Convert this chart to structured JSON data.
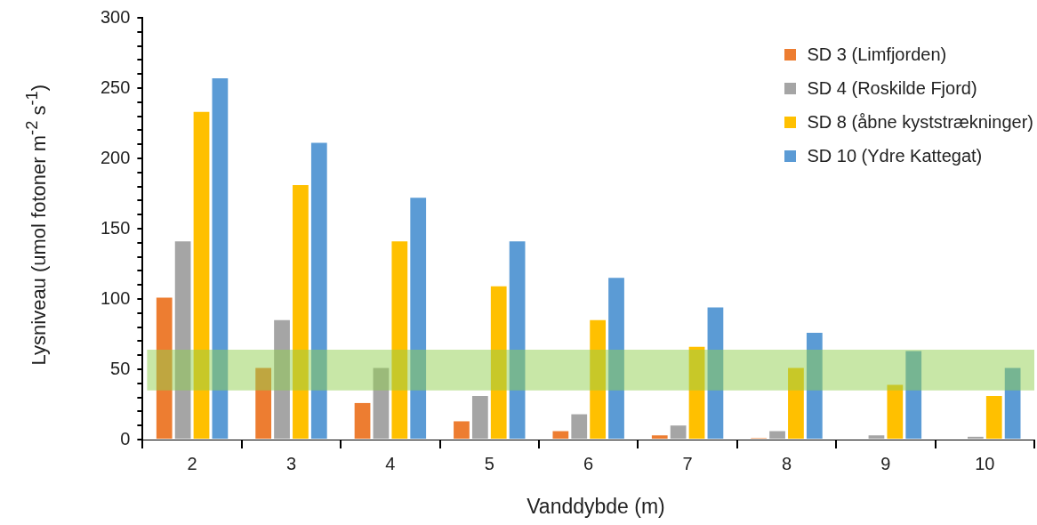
{
  "chart_data": {
    "type": "bar",
    "xlabel": "Vanddybde (m)",
    "ylabel": "Lysniveau (umol fotoner m$^{-2}$ s$^{-1}$)",
    "categories": [
      "2",
      "3",
      "4",
      "5",
      "6",
      "7",
      "8",
      "9",
      "10"
    ],
    "series": [
      {
        "name": "SD 3 (Limfjorden)",
        "color": "#ed7d31",
        "values": [
          101,
          51,
          26,
          13,
          6,
          3,
          1,
          0,
          0
        ]
      },
      {
        "name": "SD 4 (Roskilde Fjord)",
        "color": "#a5a5a5",
        "values": [
          141,
          85,
          51,
          31,
          18,
          10,
          6,
          3,
          2
        ]
      },
      {
        "name": "SD 8 (åbne kyststrækninger)",
        "color": "#ffc000",
        "values": [
          233,
          181,
          141,
          109,
          85,
          66,
          51,
          39,
          31
        ]
      },
      {
        "name": "SD 10 (Ydre Kattegat)",
        "color": "#5b9bd5",
        "values": [
          257,
          211,
          172,
          141,
          115,
          94,
          76,
          63,
          51
        ]
      }
    ],
    "ylim": [
      0,
      300
    ],
    "yticks": [
      0,
      {
        "value": 10,
        "label": null
      },
      {
        "value": 20,
        "label": null
      },
      {
        "value": 30,
        "label": null
      },
      {
        "value": 40,
        "label": null
      },
      50,
      {
        "value": 60,
        "label": null
      },
      {
        "value": 70,
        "label": null
      },
      {
        "value": 80,
        "label": null
      },
      {
        "value": 90,
        "label": null
      },
      100,
      {
        "value": 110,
        "label": null
      },
      {
        "value": 120,
        "label": null
      },
      {
        "value": 130,
        "label": null
      },
      {
        "value": 140,
        "label": null
      },
      150,
      {
        "value": 160,
        "label": null
      },
      {
        "value": 170,
        "label": null
      },
      {
        "value": 180,
        "label": null
      },
      {
        "value": 190,
        "label": null
      },
      200,
      {
        "value": 210,
        "label": null
      },
      {
        "value": 220,
        "label": null
      },
      {
        "value": 230,
        "label": null
      },
      {
        "value": 240,
        "label": null
      },
      250,
      {
        "value": 260,
        "label": null
      },
      {
        "value": 270,
        "label": null
      },
      {
        "value": 280,
        "label": null
      },
      {
        "value": 290,
        "label": null
      },
      300
    ],
    "bands": [
      {
        "axis": "y",
        "from": 35,
        "to": 64,
        "color": "#92d050"
      }
    ],
    "legend": "top right"
  }
}
